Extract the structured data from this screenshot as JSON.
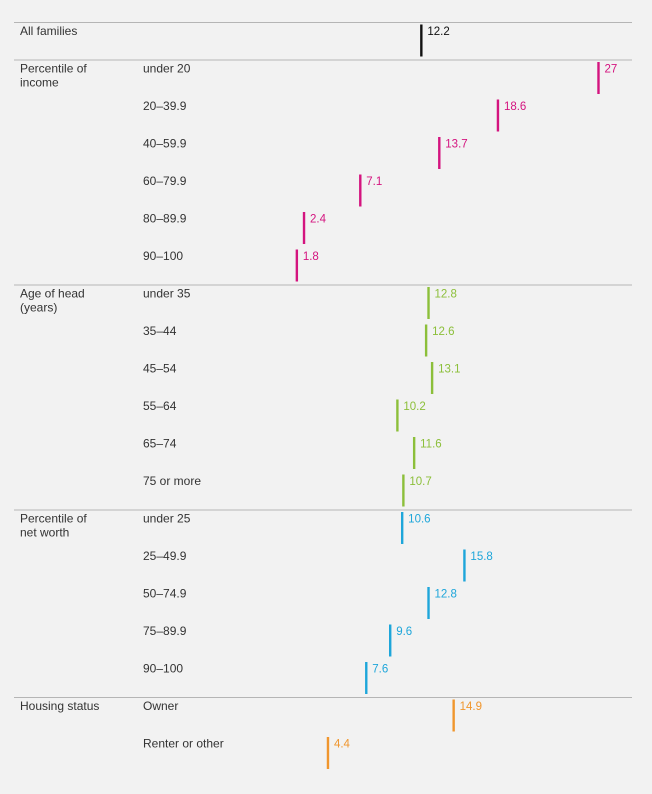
{
  "chart_data": {
    "type": "dot_strip",
    "xlim": [
      0,
      27
    ],
    "groups": [
      {
        "label": "All families",
        "color": "#111111",
        "rows": [
          {
            "label": "",
            "value": 12.2,
            "value_label": "12.2"
          }
        ]
      },
      {
        "label": "Percentile of income",
        "color": "#d4147f",
        "rows": [
          {
            "label": "under 20",
            "value": 27,
            "value_label": "27"
          },
          {
            "label": "20–39.9",
            "value": 18.6,
            "value_label": "18.6"
          },
          {
            "label": "40–59.9",
            "value": 13.7,
            "value_label": "13.7"
          },
          {
            "label": "60–79.9",
            "value": 7.1,
            "value_label": "7.1"
          },
          {
            "label": "80–89.9",
            "value": 2.4,
            "value_label": "2.4"
          },
          {
            "label": "90–100",
            "value": 1.8,
            "value_label": "1.8"
          }
        ]
      },
      {
        "label": "Age of head (years)",
        "color": "#8cbf3a",
        "rows": [
          {
            "label": "under 35",
            "value": 12.8,
            "value_label": "12.8"
          },
          {
            "label": "35–44",
            "value": 12.6,
            "value_label": "12.6"
          },
          {
            "label": "45–54",
            "value": 13.1,
            "value_label": "13.1"
          },
          {
            "label": "55–64",
            "value": 10.2,
            "value_label": "10.2"
          },
          {
            "label": "65–74",
            "value": 11.6,
            "value_label": "11.6"
          },
          {
            "label": "75 or more",
            "value": 10.7,
            "value_label": "10.7"
          }
        ]
      },
      {
        "label": "Percentile of net worth",
        "color": "#1ea6da",
        "rows": [
          {
            "label": "under 25",
            "value": 10.6,
            "value_label": "10.6"
          },
          {
            "label": "25–49.9",
            "value": 15.8,
            "value_label": "15.8"
          },
          {
            "label": "50–74.9",
            "value": 12.8,
            "value_label": "12.8"
          },
          {
            "label": "75–89.9",
            "value": 9.6,
            "value_label": "9.6"
          },
          {
            "label": "90–100",
            "value": 7.6,
            "value_label": "7.6"
          }
        ]
      },
      {
        "label": "Housing status",
        "color": "#f0962d",
        "rows": [
          {
            "label": "Owner",
            "value": 14.9,
            "value_label": "14.9"
          },
          {
            "label": "Renter or other",
            "value": 4.4,
            "value_label": "4.4"
          }
        ]
      }
    ]
  }
}
